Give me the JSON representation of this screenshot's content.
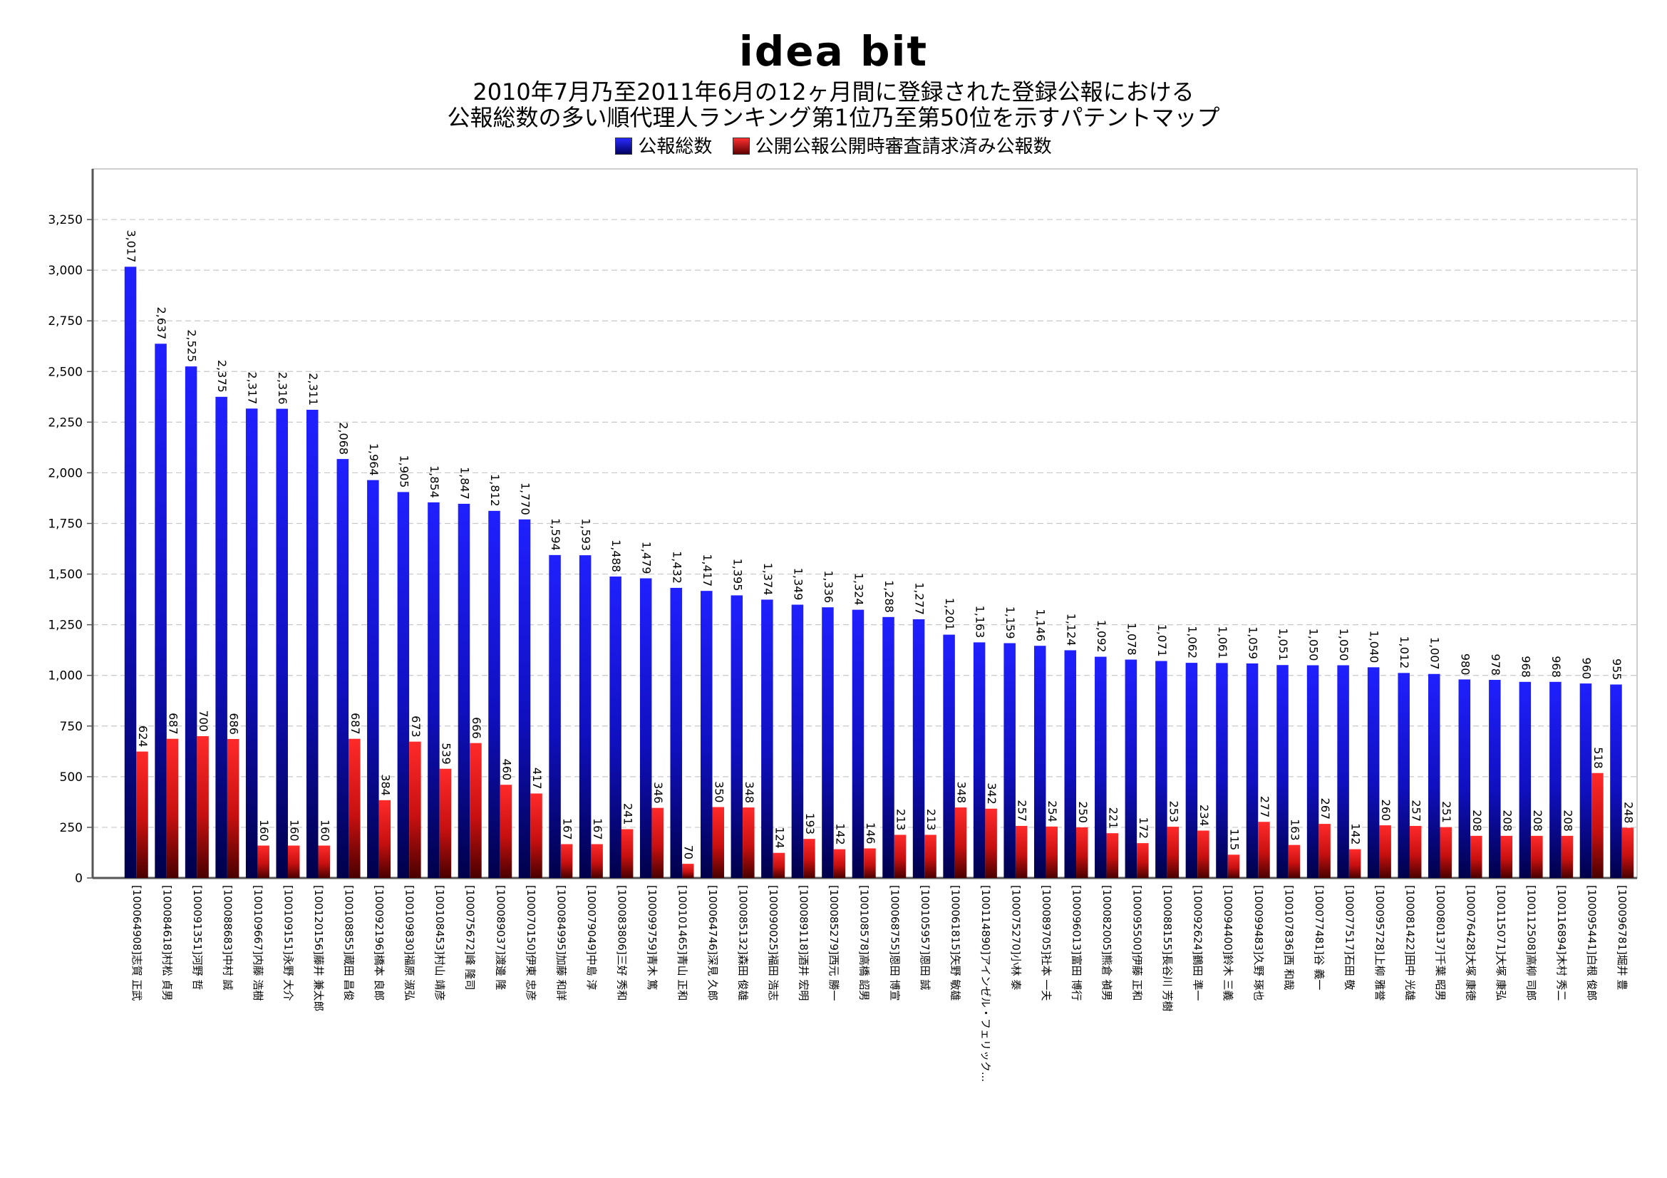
{
  "header": {
    "logo": "idea bit",
    "title_line1": "2010年7月乃至2011年6月の12ヶ月間に登録された登録公報における",
    "title_line2": "公報総数の多い順代理人ランキング第1位乃至第50位を示すパテントマップ"
  },
  "legend": {
    "series1": "公報総数",
    "series2": "公開公報公開時審査請求済み公報数"
  },
  "colors": {
    "series1": "#1a1aee",
    "series2": "#e01010"
  },
  "chart_data": {
    "type": "bar",
    "title": "2010年7月乃至2011年6月の12ヶ月間に登録された登録公報における公報総数の多い順代理人ランキング第1位乃至第50位を示すパテントマップ",
    "ylim": [
      0,
      3500
    ],
    "yticks": [
      0,
      250,
      500,
      750,
      1000,
      1250,
      1500,
      1750,
      2000,
      2250,
      2500,
      2750,
      3000,
      3250
    ],
    "ytick_labels": [
      "0",
      "250",
      "500",
      "750",
      "1,000",
      "1,250",
      "1,500",
      "1,750",
      "2,000",
      "2,250",
      "2,500",
      "2,750",
      "3,000",
      "3,250"
    ],
    "grid": true,
    "legend_position": "top",
    "categories": [
      "[100064908]志賀 正武",
      "[100084618]村松 貞男",
      "[100091351]河野 哲",
      "[100088683]中村 誠",
      "[100109667]内藤 浩樹",
      "[100109151]永野 大介",
      "[100120156]藤井 兼太郎",
      "[100108855]蔵田 昌俊",
      "[100092196]橋本 良郎",
      "[100109830]福原 淑弘",
      "[100108453]村山 靖彦",
      "[100075672]峰 隆司",
      "[100089037]渡邊 隆",
      "[100070150]伊東 忠彦",
      "[100084995]加藤 和詳",
      "[100079049]中島 淳",
      "[100083806]三好 秀和",
      "[100099759]青木 篤",
      "[100101465]青山 正和",
      "[100064746]深見 久郎",
      "[100085132]森田 俊雄",
      "[100090025]福田 浩志",
      "[100089118]酒井 宏明",
      "[100085279]西元 勝一",
      "[100108578]高橋 詔男",
      "[100068755]恩田 博宣",
      "[100105957]恩田 誠",
      "[100061815]矢野 敏雄",
      "[100114890]アインゼル・フェリック...",
      "[100075270]小林 泰",
      "[100089705]社本 一夫",
      "[100096013]富田 博行",
      "[100082005]熊倉 禎男",
      "[100095500]伊藤 正和",
      "[100088155]長谷川 芳樹",
      "[100092624]鶴田 準一",
      "[100094400]鈴木 三義",
      "[100099483]久野 琢也",
      "[100107836]西 和哉",
      "[100077481]谷 義一",
      "[100077517]石田 敬",
      "[100095728]上柳 雅誉",
      "[100081422]田中 光雄",
      "[100080137]千葉 昭男",
      "[100076428]大塚 康徳",
      "[100115071]大塚 康弘",
      "[100112508]高柳 司郎",
      "[100116894]木村 秀二",
      "[100095441]白根 俊郎",
      "[100096781]堀井 豊"
    ],
    "series": [
      {
        "name": "公報総数",
        "values": [
          3017,
          2637,
          2525,
          2375,
          2317,
          2316,
          2311,
          2068,
          1964,
          1905,
          1854,
          1847,
          1812,
          1770,
          1594,
          1593,
          1488,
          1479,
          1432,
          1417,
          1395,
          1374,
          1349,
          1336,
          1324,
          1288,
          1277,
          1201,
          1163,
          1159,
          1146,
          1124,
          1092,
          1078,
          1071,
          1062,
          1061,
          1059,
          1051,
          1050,
          1050,
          1040,
          1012,
          1007,
          980,
          978,
          968,
          968,
          960,
          955
        ],
        "labels": [
          "3,017",
          "2,637",
          "2,525",
          "2,375",
          "2,317",
          "2,316",
          "2,311",
          "2,068",
          "1,964",
          "1,905",
          "1,854",
          "1,847",
          "1,812",
          "1,770",
          "1,594",
          "1,593",
          "1,488",
          "1,479",
          "1,432",
          "1,417",
          "1,395",
          "1,374",
          "1,349",
          "1,336",
          "1,324",
          "1,288",
          "1,277",
          "1,201",
          "1,163",
          "1,159",
          "1,146",
          "1,124",
          "1,092",
          "1,078",
          "1,071",
          "1,062",
          "1,061",
          "1,059",
          "1,051",
          "1,050",
          "1,050",
          "1,040",
          "1,012",
          "1,007",
          "980",
          "978",
          "968",
          "968",
          "960",
          "955"
        ]
      },
      {
        "name": "公開公報公開時審査請求済み公報数",
        "values": [
          624,
          687,
          700,
          686,
          160,
          160,
          160,
          687,
          384,
          673,
          539,
          666,
          460,
          417,
          167,
          167,
          241,
          346,
          70,
          350,
          348,
          124,
          193,
          142,
          146,
          213,
          213,
          348,
          342,
          257,
          254,
          250,
          221,
          172,
          253,
          234,
          115,
          277,
          163,
          267,
          142,
          260,
          257,
          251,
          208,
          208,
          208,
          208,
          518,
          248
        ],
        "labels": [
          "624",
          "687",
          "700",
          "686",
          "160",
          "160",
          "160",
          "687",
          "384",
          "673",
          "539",
          "666",
          "460",
          "417",
          "167",
          "167",
          "241",
          "346",
          "70",
          "350",
          "348",
          "124",
          "193",
          "142",
          "146",
          "213",
          "213",
          "348",
          "342",
          "257",
          "254",
          "250",
          "221",
          "172",
          "253",
          "234",
          "115",
          "277",
          "163",
          "267",
          "142",
          "260",
          "257",
          "251",
          "208",
          "208",
          "208",
          "208",
          "518",
          "248"
        ]
      }
    ]
  }
}
